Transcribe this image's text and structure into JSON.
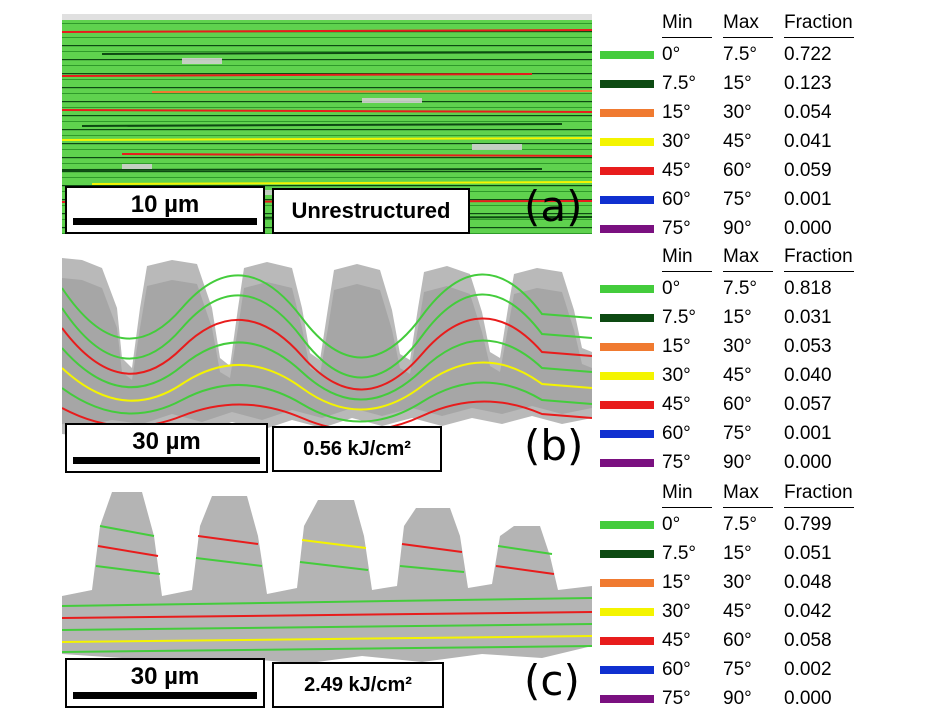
{
  "panels": [
    {
      "id": "a",
      "scale_label": "10 µm",
      "condition": "Unrestructured",
      "panel_letter": "(a)",
      "legend": {
        "headers": [
          "Min",
          "Max",
          "Fraction"
        ],
        "rows": [
          {
            "min": "0°",
            "max": "7.5°",
            "fraction": "0.722",
            "color": "#44cc3c"
          },
          {
            "min": "7.5°",
            "max": "15°",
            "fraction": "0.123",
            "color": "#0d4a12"
          },
          {
            "min": "15°",
            "max": "30°",
            "fraction": "0.054",
            "color": "#f07a30"
          },
          {
            "min": "30°",
            "max": "45°",
            "fraction": "0.041",
            "color": "#f4f400"
          },
          {
            "min": "45°",
            "max": "60°",
            "fraction": "0.059",
            "color": "#e81c1c"
          },
          {
            "min": "60°",
            "max": "75°",
            "fraction": "0.001",
            "color": "#1030d0"
          },
          {
            "min": "75°",
            "max": "90°",
            "fraction": "0.000",
            "color": "#7a1080"
          }
        ]
      }
    },
    {
      "id": "b",
      "scale_label": "30 µm",
      "condition": "0.56 kJ/cm²",
      "panel_letter": "(b)",
      "legend": {
        "headers": [
          "Min",
          "Max",
          "Fraction"
        ],
        "rows": [
          {
            "min": "0°",
            "max": "7.5°",
            "fraction": "0.818",
            "color": "#44cc3c"
          },
          {
            "min": "7.5°",
            "max": "15°",
            "fraction": "0.031",
            "color": "#0d4a12"
          },
          {
            "min": "15°",
            "max": "30°",
            "fraction": "0.053",
            "color": "#f07a30"
          },
          {
            "min": "30°",
            "max": "45°",
            "fraction": "0.040",
            "color": "#f4f400"
          },
          {
            "min": "45°",
            "max": "60°",
            "fraction": "0.057",
            "color": "#e81c1c"
          },
          {
            "min": "60°",
            "max": "75°",
            "fraction": "0.001",
            "color": "#1030d0"
          },
          {
            "min": "75°",
            "max": "90°",
            "fraction": "0.000",
            "color": "#7a1080"
          }
        ]
      }
    },
    {
      "id": "c",
      "scale_label": "30 µm",
      "condition": "2.49 kJ/cm²",
      "panel_letter": "(c)",
      "legend": {
        "headers": [
          "Min",
          "Max",
          "Fraction"
        ],
        "rows": [
          {
            "min": "0°",
            "max": "7.5°",
            "fraction": "0.799",
            "color": "#44cc3c"
          },
          {
            "min": "7.5°",
            "max": "15°",
            "fraction": "0.051",
            "color": "#0d4a12"
          },
          {
            "min": "15°",
            "max": "30°",
            "fraction": "0.048",
            "color": "#f07a30"
          },
          {
            "min": "30°",
            "max": "45°",
            "fraction": "0.042",
            "color": "#f4f400"
          },
          {
            "min": "45°",
            "max": "60°",
            "fraction": "0.058",
            "color": "#e81c1c"
          },
          {
            "min": "60°",
            "max": "75°",
            "fraction": "0.002",
            "color": "#1030d0"
          },
          {
            "min": "75°",
            "max": "90°",
            "fraction": "0.000",
            "color": "#7a1080"
          }
        ]
      }
    }
  ]
}
